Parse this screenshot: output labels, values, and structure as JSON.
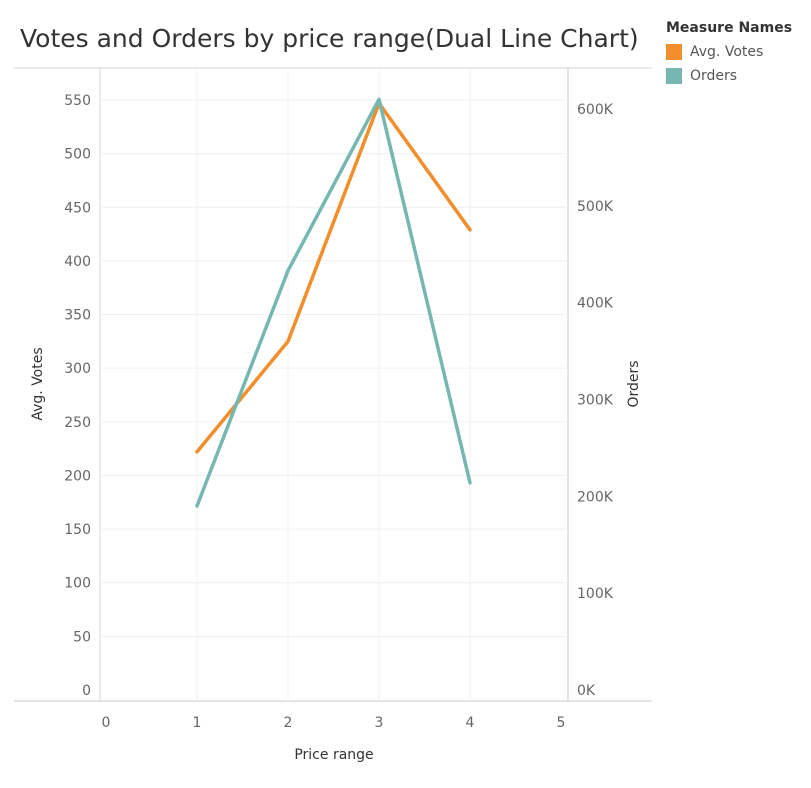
{
  "chart_data": {
    "type": "line",
    "title": "Votes and Orders by price range(Dual Line Chart)",
    "xlabel": "Price range",
    "ylabel_left": "Avg. Votes",
    "ylabel_right": "Orders",
    "x": [
      1,
      2,
      3,
      4
    ],
    "x_ticks": [
      "0",
      "1",
      "2",
      "3",
      "4",
      "5"
    ],
    "xlim": [
      0,
      5
    ],
    "y_left_ticks": [
      "0",
      "50",
      "100",
      "150",
      "200",
      "250",
      "300",
      "350",
      "400",
      "450",
      "500",
      "550"
    ],
    "y_left_lim": [
      0,
      560
    ],
    "y_right_ticks": [
      "0K",
      "100K",
      "200K",
      "300K",
      "400K",
      "500K",
      "600K"
    ],
    "y_right_lim": [
      0,
      650000
    ],
    "legend_title": "Measure Names",
    "legend_position": "top-right",
    "grid": true,
    "series": [
      {
        "name": "Avg. Votes",
        "axis": "left",
        "color": "#F28E2B",
        "values": [
          222,
          325,
          547,
          429
        ]
      },
      {
        "name": "Orders",
        "axis": "right",
        "color": "#76B7B2",
        "values": [
          190000,
          433000,
          610000,
          214000
        ]
      }
    ]
  }
}
